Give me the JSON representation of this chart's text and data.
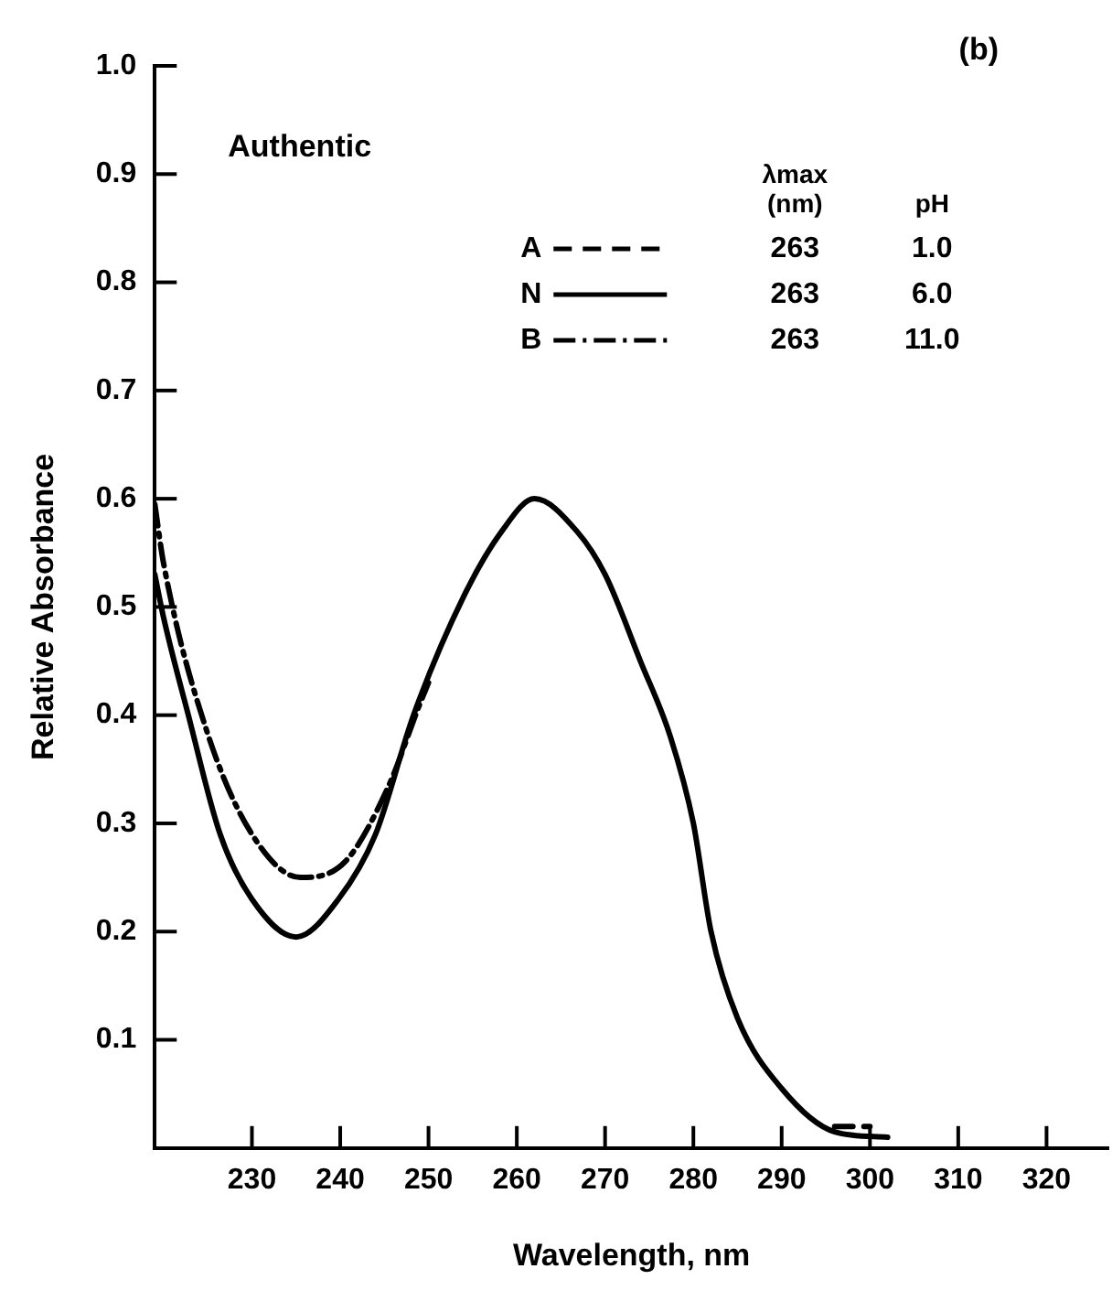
{
  "chart_data": {
    "type": "line",
    "xlabel": "Wavelength, nm",
    "ylabel": "Relative Absorbance",
    "annotations": [
      "(b)",
      "Authentic",
      "λmax (nm)",
      "pH",
      "263",
      "1.0",
      "263",
      "6.0",
      "263",
      "11.0"
    ],
    "xlim": [
      219,
      327
    ],
    "xticks": [
      230,
      240,
      250,
      260,
      270,
      280,
      290,
      300,
      310,
      320
    ],
    "ylim": [
      0,
      1
    ],
    "yticks": [
      0.1,
      0.2,
      0.3,
      0.4,
      0.5,
      0.6,
      0.7,
      0.8,
      0.9,
      {
        "value": 1,
        "label": "1.0"
      }
    ],
    "legend": "top right",
    "series": [
      {
        "name": "A",
        "color": "#000000",
        "line_style": "dashed",
        "x": [
          296,
          300
        ],
        "values": [
          0.02,
          0.02
        ]
      },
      {
        "name": "N",
        "color": "#000000",
        "line_style": "solid",
        "x": [
          219,
          220,
          222.8,
          226.4,
          230,
          235,
          239.8,
          244,
          248.3,
          254,
          258.3,
          262,
          266.8,
          270,
          274,
          277.4,
          280,
          282,
          285,
          290,
          296,
          302
        ],
        "values": [
          0.53,
          0.49,
          0.4,
          0.29,
          0.23,
          0.195,
          0.23,
          0.29,
          0.4,
          0.51,
          0.57,
          0.6,
          0.57,
          0.53,
          0.45,
          0.38,
          0.3,
          0.2,
          0.12,
          0.055,
          0.015,
          0.01
        ]
      },
      {
        "name": "B",
        "color": "#000000",
        "line_style": "dashdot",
        "x": [
          219,
          220,
          224.9,
          230,
          235.5,
          240.6,
          245.5,
          249,
          250
        ],
        "values": [
          0.595,
          0.54,
          0.385,
          0.29,
          0.25,
          0.265,
          0.335,
          0.41,
          0.43
        ]
      }
    ]
  }
}
